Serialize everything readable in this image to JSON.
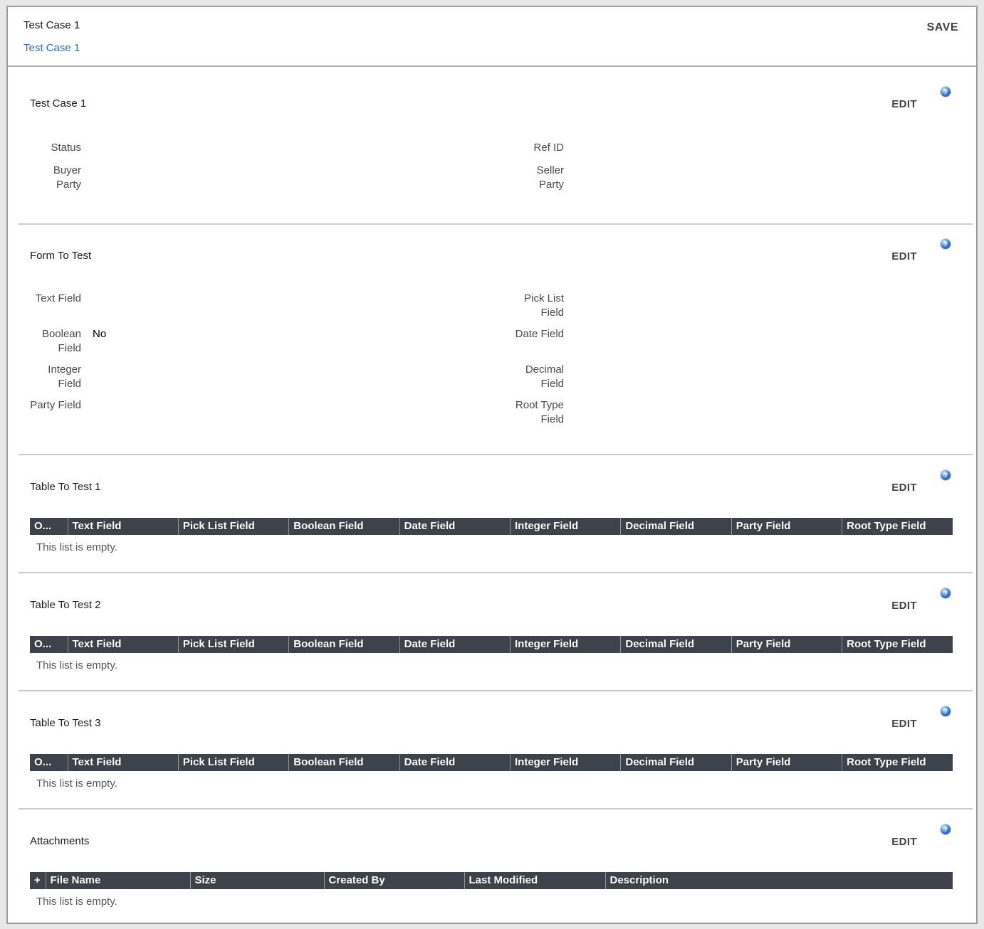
{
  "labels": {
    "edit": "EDIT",
    "save": "SAVE",
    "help_glyph": "?"
  },
  "header": {
    "title": "Test Case 1",
    "link": "Test Case 1"
  },
  "colors": {
    "table_header_bg": "#3e434b",
    "link_blue": "#2e6db4",
    "help_icon_blue": "#2f6cc8",
    "divider_gray": "#cccccc",
    "edit_text_gray": "#414141"
  },
  "sections": [
    {
      "title": "Test Case 1",
      "type": "form",
      "left": [
        {
          "label": "Status",
          "value": ""
        },
        {
          "label": "Buyer Party",
          "value": ""
        }
      ],
      "right": [
        {
          "label": "Ref ID",
          "value": ""
        },
        {
          "label": "Seller Party",
          "value": ""
        }
      ]
    },
    {
      "title": "Form To Test",
      "type": "form",
      "left": [
        {
          "label": "Text Field",
          "value": ""
        },
        {
          "label": "Boolean Field",
          "value": "No"
        },
        {
          "label": "Integer Field",
          "value": ""
        },
        {
          "label": "Party Field",
          "value": ""
        }
      ],
      "right": [
        {
          "label": "Pick List Field",
          "value": ""
        },
        {
          "label": "Date Field",
          "value": ""
        },
        {
          "label": "Decimal Field",
          "value": ""
        },
        {
          "label": "Root Type Field",
          "value": ""
        }
      ]
    },
    {
      "title": "Table To Test 1",
      "type": "table",
      "columns": [
        "O...",
        "Text Field",
        "Pick List Field",
        "Boolean Field",
        "Date Field",
        "Integer Field",
        "Decimal Field",
        "Party Field",
        "Root Type Field"
      ],
      "empty": "This list is empty."
    },
    {
      "title": "Table To Test 2",
      "type": "table",
      "columns": [
        "O...",
        "Text Field",
        "Pick List Field",
        "Boolean Field",
        "Date Field",
        "Integer Field",
        "Decimal Field",
        "Party Field",
        "Root Type Field"
      ],
      "empty": "This list is empty."
    },
    {
      "title": "Table To Test 3",
      "type": "table",
      "columns": [
        "O...",
        "Text Field",
        "Pick List Field",
        "Boolean Field",
        "Date Field",
        "Integer Field",
        "Decimal Field",
        "Party Field",
        "Root Type Field"
      ],
      "empty": "This list is empty."
    },
    {
      "title": "Attachments",
      "type": "table",
      "columns": [
        "+",
        "File Name",
        "Size",
        "Created By",
        "Last Modified",
        "Description"
      ],
      "empty": "This list is empty."
    }
  ]
}
